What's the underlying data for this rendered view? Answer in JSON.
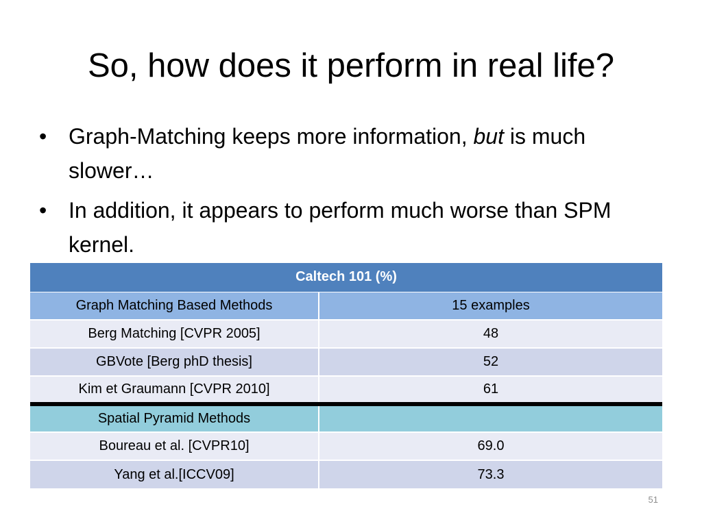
{
  "slide": {
    "title": "So, how does it perform in real life?",
    "bullets": [
      {
        "text_before": "Graph-Matching keeps more information, ",
        "emphasis": "but",
        "text_after": " is much slower…"
      },
      {
        "text_before": "In addition, it appears to perform much worse than SPM kernel.",
        "emphasis": "",
        "text_after": ""
      }
    ],
    "bullet_glyph": "•",
    "page_number": "51"
  },
  "table": {
    "caption": "Caltech 101 (%)",
    "header": [
      "Graph Matching Based Methods",
      "15 examples"
    ],
    "graph_rows": [
      [
        "Berg Matching [CVPR 2005]",
        "48"
      ],
      [
        "GBVote [Berg phD thesis]",
        "52"
      ],
      [
        "Kim et Graumann [CVPR 2010]",
        "61"
      ]
    ],
    "spm_header": [
      "Spatial Pyramid Methods",
      ""
    ],
    "spm_rows": [
      [
        "Boureau et al. [CVPR10]",
        "69.0"
      ],
      [
        "Yang et al.[ICCV09]",
        "73.3"
      ]
    ]
  },
  "colors": {
    "caption_bg": "#4f81bd",
    "header_bg": "#8fb4e3",
    "row_light": "#e9ebf5",
    "row_dark": "#cfd5ea",
    "spm_header_bg": "#92cddc",
    "separator": "#000000"
  }
}
